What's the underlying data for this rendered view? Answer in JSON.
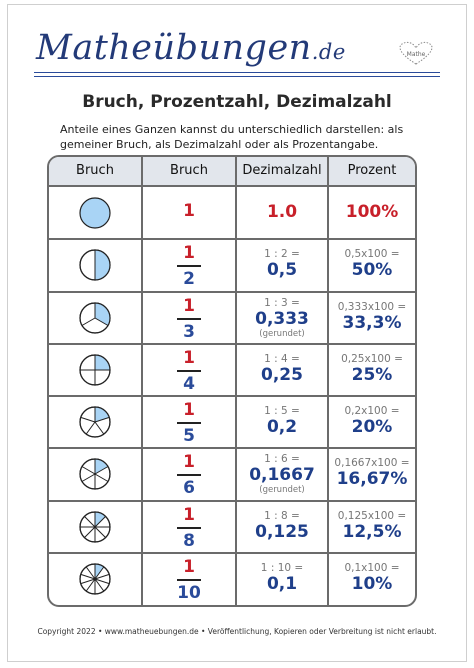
{
  "brand": {
    "logo_main": "Matheübungen",
    "logo_suffix": ".de",
    "badge_text": "Mathe"
  },
  "title": "Bruch, Prozentzahl, Dezimalzahl",
  "intro": "Anteile eines Ganzen kannst du unterschiedlich darstellen: als gemeiner Bruch, als Dezimalzahl oder als Prozentangabe.",
  "columns": [
    "Bruch",
    "Bruch",
    "Dezimalzahl",
    "Prozent"
  ],
  "colors": {
    "pie_fill": "#a9d4f5",
    "pie_stroke": "#222222",
    "red": "#c8202a",
    "blue": "#1f3f8a",
    "header_bg": "#e2e6ec"
  },
  "rows": [
    {
      "slices": 1,
      "whole": "1",
      "decimal": "1.0",
      "percent": "100%"
    },
    {
      "slices": 2,
      "numerator": "1",
      "denominator": "2",
      "division": "1 : 2 =",
      "decimal": "0,5",
      "note": "",
      "percent_calc": "0,5x100 =",
      "percent": "50%"
    },
    {
      "slices": 3,
      "numerator": "1",
      "denominator": "3",
      "division": "1 : 3 =",
      "decimal": "0,333",
      "note": "(gerundet)",
      "percent_calc": "0,333x100 =",
      "percent": "33,3%"
    },
    {
      "slices": 4,
      "numerator": "1",
      "denominator": "4",
      "division": "1 : 4 =",
      "decimal": "0,25",
      "note": "",
      "percent_calc": "0,25x100 =",
      "percent": "25%"
    },
    {
      "slices": 5,
      "numerator": "1",
      "denominator": "5",
      "division": "1 : 5 =",
      "decimal": "0,2",
      "note": "",
      "percent_calc": "0,2x100 =",
      "percent": "20%"
    },
    {
      "slices": 6,
      "numerator": "1",
      "denominator": "6",
      "division": "1 : 6 =",
      "decimal": "0,1667",
      "note": "(gerundet)",
      "percent_calc": "0,1667x100 =",
      "percent": "16,67%"
    },
    {
      "slices": 8,
      "numerator": "1",
      "denominator": "8",
      "division": "1 : 8 =",
      "decimal": "0,125",
      "note": "",
      "percent_calc": "0,125x100 =",
      "percent": "12,5%"
    },
    {
      "slices": 10,
      "numerator": "1",
      "denominator": "10",
      "division": "1 : 10 =",
      "decimal": "0,1",
      "note": "",
      "percent_calc": "0,1x100 =",
      "percent": "10%"
    }
  ],
  "footer": "Copyright 2022 • www.matheuebungen.de • Veröffentlichung, Kopieren oder Verbreitung ist nicht erlaubt."
}
